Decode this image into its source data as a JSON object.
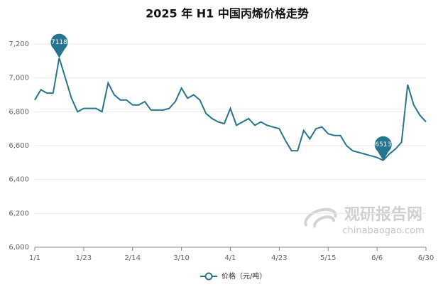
{
  "chart_data": {
    "type": "line",
    "title": "2025 年 H1 中国丙烯价格走势",
    "watermark": {
      "name": "观研报告网",
      "url": "chinabaogao.com"
    },
    "categories": [
      "1/1",
      null,
      null,
      null,
      null,
      null,
      null,
      null,
      "1/23",
      null,
      null,
      null,
      null,
      null,
      null,
      null,
      "2/14",
      null,
      null,
      null,
      null,
      null,
      null,
      null,
      "3/10",
      null,
      null,
      null,
      null,
      null,
      null,
      null,
      "4/1",
      null,
      null,
      null,
      null,
      null,
      null,
      null,
      "4/23",
      null,
      null,
      null,
      null,
      null,
      null,
      null,
      "5/15",
      null,
      null,
      null,
      null,
      null,
      null,
      null,
      "6/6",
      null,
      null,
      null,
      null,
      null,
      null,
      null,
      "6/30"
    ],
    "series": [
      {
        "name": "价格（元/吨）",
        "color": "#26758f",
        "values": [
          6870,
          6930,
          6910,
          6910,
          7118,
          7000,
          6880,
          6800,
          6820,
          6820,
          6820,
          6800,
          6970,
          6900,
          6870,
          6870,
          6840,
          6840,
          6860,
          6810,
          6810,
          6810,
          6820,
          6860,
          6940,
          6880,
          6900,
          6870,
          6790,
          6760,
          6740,
          6730,
          6820,
          6720,
          6740,
          6760,
          6720,
          6740,
          6720,
          6710,
          6700,
          6630,
          6570,
          6570,
          6690,
          6640,
          6700,
          6710,
          6670,
          6660,
          6660,
          6600,
          6570,
          6560,
          6550,
          6540,
          6530,
          6513,
          6550,
          6580,
          6620,
          6960,
          6840,
          6780,
          6740
        ]
      }
    ],
    "ylim": [
      6000,
      7200
    ],
    "yticks": [
      {
        "value": 6000,
        "label": "6,000"
      },
      {
        "value": 6200,
        "label": "6,200"
      },
      {
        "value": 6400,
        "label": "6,400"
      },
      {
        "value": 6600,
        "label": "6,600"
      },
      {
        "value": 6800,
        "label": "6,800"
      },
      {
        "value": 7000,
        "label": "7,000"
      },
      {
        "value": 7200,
        "label": "7,200"
      }
    ],
    "grid": true,
    "legend": "bottom",
    "mark_extremes": true
  }
}
